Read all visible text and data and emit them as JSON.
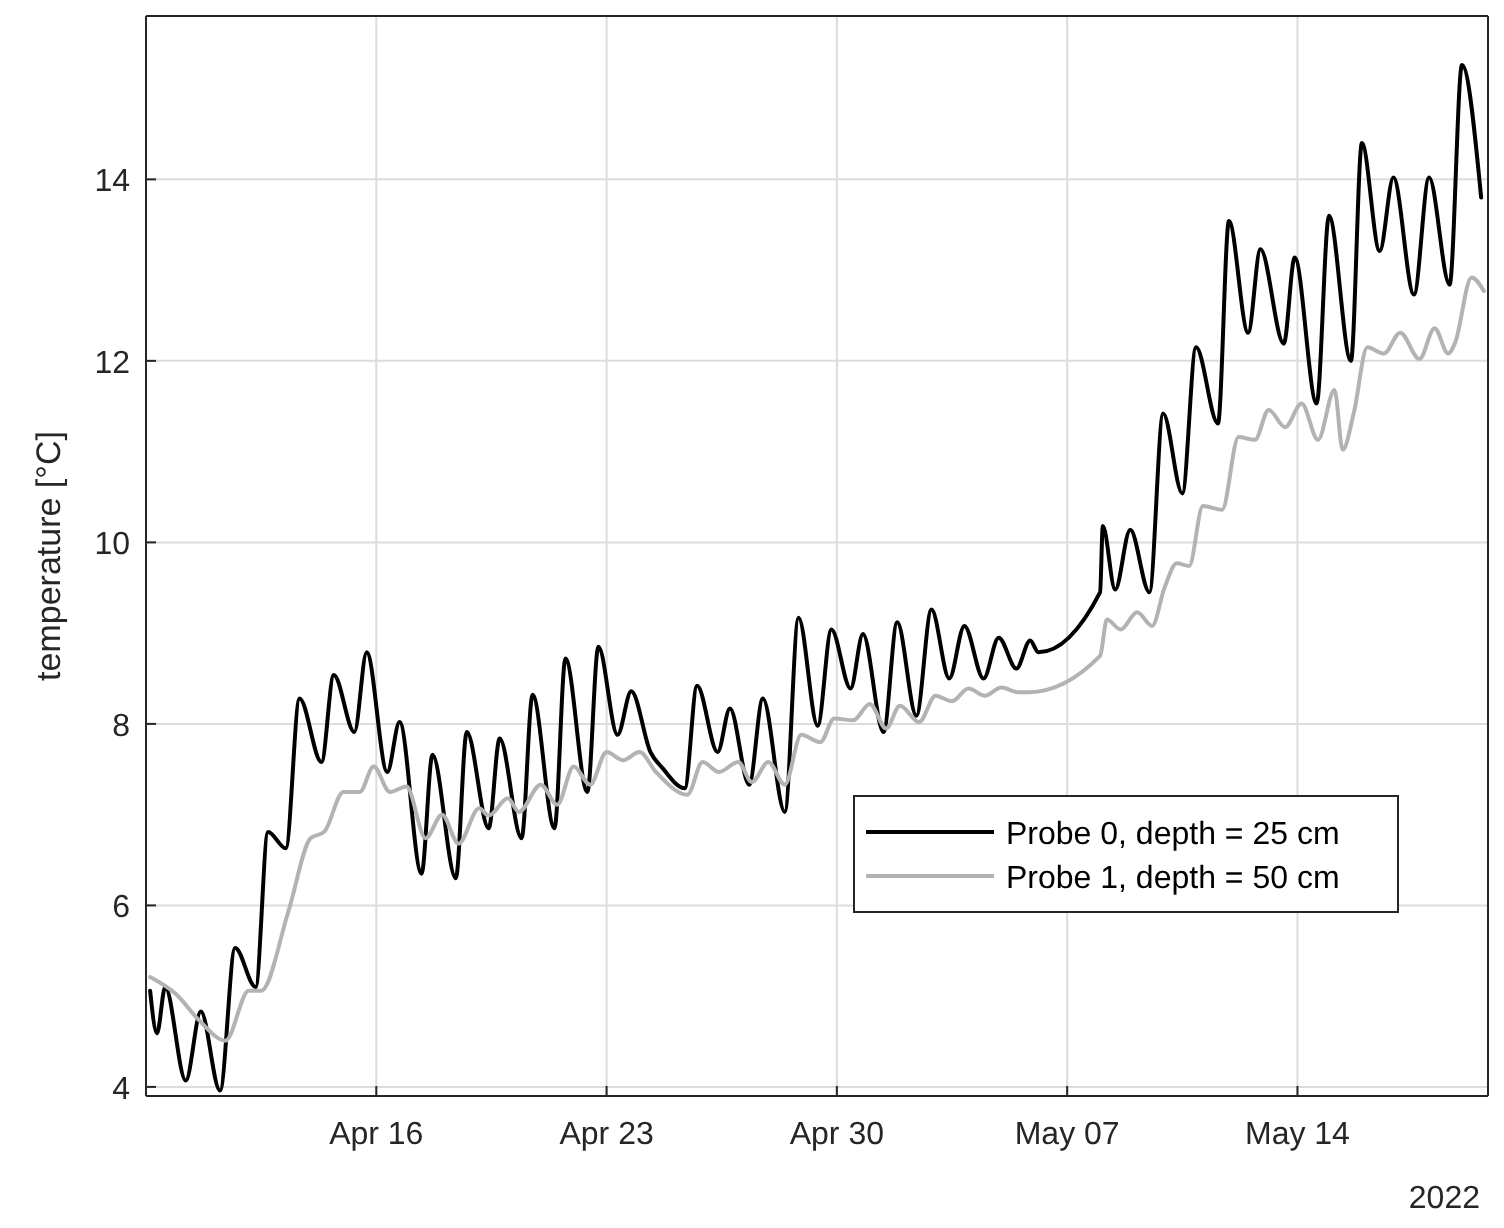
{
  "chart_data": {
    "type": "line",
    "ylabel": "temperature [°C]",
    "annotations": [
      "2022"
    ],
    "xlim": [
      "2022-04-09",
      "2022-05-19T19:00"
    ],
    "xticks": [
      {
        "value": "2022-04-16",
        "label": "Apr 16"
      },
      {
        "value": "2022-04-23",
        "label": "Apr 23"
      },
      {
        "value": "2022-04-30",
        "label": "Apr 30"
      },
      {
        "value": "2022-05-07",
        "label": "May 07"
      },
      {
        "value": "2022-05-14",
        "label": "May 14"
      }
    ],
    "ylim": [
      3.9,
      15.8
    ],
    "yticks": [
      4,
      6,
      8,
      10,
      12,
      14
    ],
    "grid": true,
    "legend": "right",
    "line_style": "solid",
    "series": [
      {
        "name": "Probe 0, depth = 25 cm",
        "color": "#000000",
        "x": [
          "2022-04-09T03:00",
          "2022-04-09T08:00",
          "2022-04-09T14:00",
          "2022-04-10T05:00",
          "2022-04-10T16:00",
          "2022-04-11T06:00",
          "2022-04-11T17:00",
          "2022-04-12T08:00",
          "2022-04-12T17:00",
          "2022-04-13T06:00",
          "2022-04-13T16:00",
          "2022-04-14T08:00",
          "2022-04-14T17:00",
          "2022-04-15T08:00",
          "2022-04-15T17:00",
          "2022-04-16T08:00",
          "2022-04-16T17:00",
          "2022-04-17T09:00",
          "2022-04-17T17:00",
          "2022-04-18T10:00",
          "2022-04-18T18:00",
          "2022-04-19T10:00",
          "2022-04-19T18:00",
          "2022-04-20T10:00",
          "2022-04-20T18:00",
          "2022-04-21T10:00",
          "2022-04-21T18:00",
          "2022-04-22T10:00",
          "2022-04-22T18:00",
          "2022-04-23T08:00",
          "2022-04-23T18:00",
          "2022-04-24T08:00",
          "2022-04-24T17:00",
          "2022-04-25T09:00",
          "2022-04-25T18:00",
          "2022-04-26T09:00",
          "2022-04-26T18:00",
          "2022-04-27T08:00",
          "2022-04-27T18:00",
          "2022-04-28T10:00",
          "2022-04-28T20:00",
          "2022-04-29T10:00",
          "2022-04-29T20:00",
          "2022-04-30T10:00",
          "2022-04-30T19:00",
          "2022-05-01T10:00",
          "2022-05-01T20:00",
          "2022-05-02T10:00",
          "2022-05-02T21:00",
          "2022-05-03T10:00",
          "2022-05-03T21:00",
          "2022-05-04T11:00",
          "2022-05-04T22:00",
          "2022-05-05T11:00",
          "2022-05-05T21:00",
          "2022-05-06T03:00",
          "2022-05-08T00:00",
          "2022-05-08T02:00",
          "2022-05-08T11:00",
          "2022-05-08T22:00",
          "2022-05-09T12:00",
          "2022-05-09T22:00",
          "2022-05-10T12:00",
          "2022-05-10T22:00",
          "2022-05-11T14:00",
          "2022-05-11T22:00",
          "2022-05-12T12:00",
          "2022-05-12T21:00",
          "2022-05-13T14:00",
          "2022-05-13T22:00",
          "2022-05-14T14:00",
          "2022-05-14T23:00",
          "2022-05-15T15:00",
          "2022-05-15T23:00",
          "2022-05-16T12:00",
          "2022-05-16T22:00",
          "2022-05-17T13:00",
          "2022-05-18T00:00",
          "2022-05-18T15:00",
          "2022-05-19T00:00",
          "2022-05-19T14:00"
        ],
        "values": [
          5.06,
          4.59,
          5.1,
          4.07,
          4.83,
          3.96,
          5.53,
          5.1,
          6.81,
          6.63,
          8.28,
          7.58,
          8.54,
          7.91,
          8.79,
          7.47,
          8.02,
          6.35,
          7.66,
          6.3,
          7.91,
          6.85,
          7.84,
          6.74,
          8.32,
          6.85,
          8.72,
          7.25,
          8.85,
          7.88,
          8.36,
          7.69,
          7.51,
          7.29,
          8.42,
          7.69,
          8.17,
          7.33,
          8.28,
          7.03,
          9.17,
          7.98,
          9.04,
          8.39,
          8.99,
          7.91,
          9.12,
          8.09,
          9.26,
          8.5,
          9.08,
          8.5,
          8.95,
          8.61,
          8.92,
          8.79,
          9.45,
          10.18,
          9.48,
          10.14,
          9.45,
          11.42,
          10.54,
          12.15,
          11.31,
          13.54,
          12.31,
          13.23,
          12.19,
          13.14,
          11.53,
          13.6,
          12.0,
          14.4,
          13.21,
          14.02,
          12.73,
          14.02,
          12.84,
          15.26,
          13.8
        ]
      },
      {
        "name": "Probe 1, depth = 50 cm",
        "color": "#b3b3b3",
        "x": [
          "2022-04-09T03:00",
          "2022-04-09T22:00",
          "2022-04-10T15:00",
          "2022-04-11T10:00",
          "2022-04-12T03:00",
          "2022-04-12T12:00",
          "2022-04-13T08:00",
          "2022-04-14T00:00",
          "2022-04-14T10:00",
          "2022-04-15T00:00",
          "2022-04-15T12:00",
          "2022-04-15T22:00",
          "2022-04-16T10:00",
          "2022-04-16T22:00",
          "2022-04-17T12:00",
          "2022-04-18T00:00",
          "2022-04-18T12:00",
          "2022-04-19T03:00",
          "2022-04-19T10:00",
          "2022-04-20T00:00",
          "2022-04-20T08:00",
          "2022-04-21T00:00",
          "2022-04-21T12:00",
          "2022-04-22T00:00",
          "2022-04-22T12:00",
          "2022-04-23T00:00",
          "2022-04-23T12:00",
          "2022-04-24T00:00",
          "2022-04-24T12:00",
          "2022-04-25T11:00",
          "2022-04-25T22:00",
          "2022-04-26T10:00",
          "2022-04-27T00:00",
          "2022-04-27T10:00",
          "2022-04-27T22:00",
          "2022-04-28T10:00",
          "2022-04-28T22:00",
          "2022-04-29T12:00",
          "2022-04-29T22:00",
          "2022-04-30T12:00",
          "2022-05-01T00:00",
          "2022-05-01T12:00",
          "2022-05-01T22:00",
          "2022-05-02T12:00",
          "2022-05-03T00:00",
          "2022-05-03T12:00",
          "2022-05-04T00:00",
          "2022-05-04T12:00",
          "2022-05-05T00:00",
          "2022-05-05T12:00",
          "2022-05-05T20:00",
          "2022-05-08T00:00",
          "2022-05-08T05:00",
          "2022-05-08T15:00",
          "2022-05-09T03:00",
          "2022-05-09T14:00",
          "2022-05-09T23:00",
          "2022-05-10T08:00",
          "2022-05-10T17:00",
          "2022-05-11T03:00",
          "2022-05-11T17:00",
          "2022-05-12T05:00",
          "2022-05-12T17:00",
          "2022-05-13T03:00",
          "2022-05-13T15:00",
          "2022-05-14T03:00",
          "2022-05-14T15:00",
          "2022-05-15T03:00",
          "2022-05-15T09:00",
          "2022-05-15T17:00",
          "2022-05-16T03:00",
          "2022-05-16T15:00",
          "2022-05-17T03:00",
          "2022-05-17T17:00",
          "2022-05-18T04:00",
          "2022-05-18T14:00",
          "2022-05-18T19:00",
          "2022-05-19T07:00",
          "2022-05-19T16:00"
        ],
        "values": [
          5.21,
          5.02,
          4.73,
          4.51,
          5.06,
          5.06,
          5.94,
          6.74,
          6.81,
          7.25,
          7.25,
          7.53,
          7.25,
          7.31,
          6.74,
          7.0,
          6.68,
          7.07,
          6.99,
          7.18,
          7.03,
          7.33,
          7.11,
          7.53,
          7.33,
          7.69,
          7.6,
          7.69,
          7.47,
          7.22,
          7.58,
          7.47,
          7.58,
          7.36,
          7.58,
          7.33,
          7.88,
          7.8,
          8.06,
          8.04,
          8.22,
          7.95,
          8.2,
          8.02,
          8.31,
          8.25,
          8.39,
          8.31,
          8.4,
          8.35,
          8.35,
          8.75,
          9.15,
          9.04,
          9.23,
          9.08,
          9.5,
          9.77,
          9.74,
          10.4,
          10.36,
          11.16,
          11.13,
          11.46,
          11.27,
          11.53,
          11.13,
          11.68,
          11.02,
          11.42,
          12.15,
          12.08,
          12.31,
          12.02,
          12.36,
          12.08,
          12.2,
          12.92,
          12.77
        ]
      }
    ]
  }
}
